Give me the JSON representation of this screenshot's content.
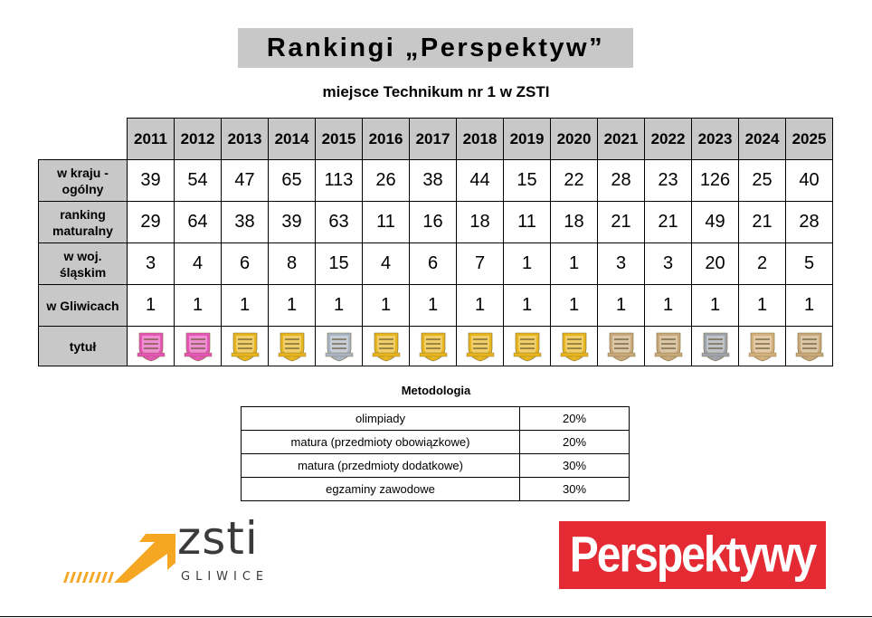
{
  "title": "Rankingi „Perspektyw”",
  "subtitle": "miejsce Technikum nr 1 w ZSTI",
  "years": [
    "2011",
    "2012",
    "2013",
    "2014",
    "2015",
    "2016",
    "2017",
    "2018",
    "2019",
    "2020",
    "2021",
    "2022",
    "2023",
    "2024",
    "2025"
  ],
  "rows": [
    {
      "label_lines": [
        "w kraju -",
        "ogólny"
      ],
      "values": [
        "39",
        "54",
        "47",
        "65",
        "113",
        "26",
        "38",
        "44",
        "15",
        "22",
        "28",
        "23",
        "126",
        "25",
        "40"
      ]
    },
    {
      "label_lines": [
        "ranking",
        "maturalny"
      ],
      "values": [
        "29",
        "64",
        "38",
        "39",
        "63",
        "11",
        "16",
        "18",
        "11",
        "18",
        "21",
        "21",
        "49",
        "21",
        "28"
      ]
    },
    {
      "label_lines": [
        "w woj.",
        "śląskim"
      ],
      "values": [
        "3",
        "4",
        "6",
        "8",
        "15",
        "4",
        "6",
        "7",
        "1",
        "1",
        "3",
        "3",
        "20",
        "2",
        "5"
      ]
    },
    {
      "label_lines": [
        "w Gliwicach"
      ],
      "values": [
        "1",
        "1",
        "1",
        "1",
        "1",
        "1",
        "1",
        "1",
        "1",
        "1",
        "1",
        "1",
        "1",
        "1",
        "1"
      ]
    }
  ],
  "badge_row_label": "tytuł",
  "badges": [
    {
      "color": "#e754b8"
    },
    {
      "color": "#e754b8"
    },
    {
      "color": "#e9b51c"
    },
    {
      "color": "#e9b51c"
    },
    {
      "color": "#a9b4c4"
    },
    {
      "color": "#e9b51c"
    },
    {
      "color": "#e9b51c"
    },
    {
      "color": "#e9b51c"
    },
    {
      "color": "#e9b51c"
    },
    {
      "color": "#e9b51c"
    },
    {
      "color": "#c9a87a"
    },
    {
      "color": "#c9a87a"
    },
    {
      "color": "#9ea4ad"
    },
    {
      "color": "#d4b07c"
    },
    {
      "color": "#c9a87a"
    }
  ],
  "methodology": {
    "title": "Metodologia",
    "rows": [
      {
        "name": "olimpiady",
        "value": "20%"
      },
      {
        "name": "matura (przedmioty obowiązkowe)",
        "value": "20%"
      },
      {
        "name": "matura (przedmioty dodatkowe)",
        "value": "30%"
      },
      {
        "name": "egzaminy zawodowe",
        "value": "30%"
      }
    ]
  },
  "logos": {
    "zsti_word": "zsti",
    "zsti_sub": "GLIWICE",
    "zsti_arrow_color": "#f5a623",
    "perspektywy_word": "Perspektywy",
    "perspektywy_color": "#e42a33"
  }
}
